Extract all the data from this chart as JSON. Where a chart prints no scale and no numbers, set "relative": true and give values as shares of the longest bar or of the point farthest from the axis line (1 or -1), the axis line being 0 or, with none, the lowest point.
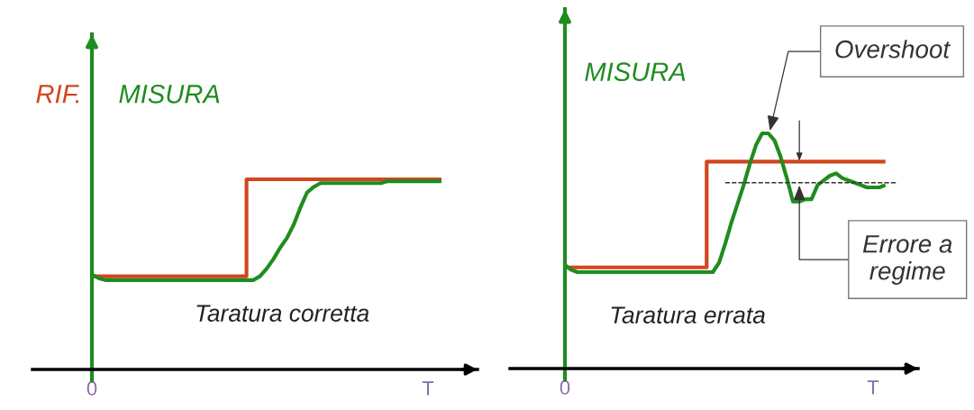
{
  "chart_data": [
    {
      "type": "line",
      "relative": true,
      "categories": [
        "0",
        null,
        null,
        null,
        null,
        null,
        null,
        null,
        null,
        null,
        null,
        null,
        null,
        null,
        null,
        null,
        null,
        null,
        null,
        null,
        null,
        null,
        null,
        null,
        null,
        null,
        null,
        null,
        null,
        null,
        null,
        null,
        null,
        null,
        null,
        null,
        null,
        null,
        null,
        null,
        null,
        null,
        null,
        null,
        null,
        null,
        null,
        null,
        null,
        null,
        "T",
        null,
        null
      ],
      "series": [
        {
          "name": "RIF.",
          "type": "step",
          "color": "#d2461e",
          "values": [
            0.49,
            0.49,
            0.49,
            0.49,
            0.49,
            0.49,
            0.49,
            0.49,
            0.49,
            0.49,
            0.49,
            0.49,
            0.49,
            0.49,
            0.49,
            0.49,
            0.49,
            0.49,
            0.49,
            0.49,
            0.49,
            0.49,
            0.49,
            1,
            1,
            1,
            1,
            1,
            1,
            1,
            1,
            1,
            1,
            1,
            1,
            1,
            1,
            1,
            1,
            1,
            1,
            1,
            1,
            1,
            1,
            1,
            1,
            1,
            1,
            1,
            1,
            1,
            1
          ]
        },
        {
          "name": "MISURA",
          "color": "#1f8c1f",
          "values": [
            0.5,
            0.48,
            0.47,
            0.47,
            0.47,
            0.47,
            0.47,
            0.47,
            0.47,
            0.47,
            0.47,
            0.47,
            0.47,
            0.47,
            0.47,
            0.47,
            0.47,
            0.47,
            0.47,
            0.47,
            0.47,
            0.47,
            0.47,
            0.47,
            0.47,
            0.49,
            0.53,
            0.58,
            0.64,
            0.69,
            0.76,
            0.85,
            0.93,
            0.96,
            0.98,
            0.98,
            0.98,
            0.98,
            0.98,
            0.98,
            0.98,
            0.98,
            0.98,
            0.98,
            0.99,
            0.99,
            0.99,
            0.99,
            0.99,
            0.99,
            0.99,
            0.99,
            0.99
          ]
        }
      ],
      "annotations": [
        "Taratura corretta"
      ]
    },
    {
      "type": "line",
      "relative": true,
      "categories": [
        "0",
        null,
        null,
        null,
        null,
        null,
        null,
        null,
        null,
        null,
        null,
        null,
        null,
        null,
        null,
        null,
        null,
        null,
        null,
        null,
        null,
        null,
        null,
        null,
        null,
        null,
        null,
        null,
        null,
        null,
        null,
        null,
        null,
        null,
        null,
        null,
        null,
        null,
        null,
        null,
        null,
        null,
        null,
        null,
        null,
        null,
        null,
        null,
        null,
        null,
        "T",
        null,
        null,
        null,
        null
      ],
      "series": [
        {
          "type": "step",
          "color": "#d2461e",
          "values": [
            0.43,
            0.43,
            0.43,
            0.43,
            0.43,
            0.43,
            0.43,
            0.43,
            0.43,
            0.43,
            0.43,
            0.43,
            0.43,
            0.43,
            0.43,
            0.43,
            0.43,
            0.43,
            0.43,
            0.43,
            0.43,
            0.43,
            0.43,
            0.88,
            0.88,
            0.88,
            0.88,
            0.88,
            0.88,
            0.88,
            0.88,
            0.88,
            0.88,
            0.88,
            0.88,
            0.88,
            0.88,
            0.88,
            0.88,
            0.88,
            0.88,
            0.88,
            0.88,
            0.88,
            0.88,
            0.88,
            0.88,
            0.88,
            0.88,
            0.88,
            0.88,
            0.88,
            0.88,
            null,
            null
          ]
        },
        {
          "name": "MISURA",
          "color": "#1f8c1f",
          "values": [
            0.44,
            0.42,
            0.41,
            0.41,
            0.41,
            0.41,
            0.41,
            0.41,
            0.41,
            0.41,
            0.41,
            0.41,
            0.41,
            0.41,
            0.41,
            0.41,
            0.41,
            0.41,
            0.41,
            0.41,
            0.41,
            0.41,
            0.41,
            0.41,
            0.41,
            0.45,
            0.53,
            0.62,
            0.7,
            0.78,
            0.87,
            0.95,
            1,
            1,
            0.97,
            0.9,
            0.81,
            0.71,
            0.71,
            0.72,
            0.72,
            0.78,
            0.8,
            0.82,
            0.83,
            0.81,
            0.8,
            0.79,
            0.78,
            0.77,
            0.77,
            0.77,
            0.78,
            null,
            null
          ]
        },
        {
          "color": "#333333",
          "line_style": "dashed",
          "values": [
            null,
            null,
            null,
            null,
            null,
            null,
            null,
            null,
            null,
            null,
            null,
            null,
            null,
            null,
            null,
            null,
            null,
            null,
            null,
            null,
            null,
            null,
            null,
            null,
            null,
            null,
            0.79,
            0.79,
            0.79,
            0.79,
            0.79,
            0.79,
            0.79,
            0.79,
            0.79,
            0.79,
            0.79,
            0.79,
            0.79,
            0.79,
            0.79,
            0.79,
            0.79,
            0.79,
            0.79,
            0.79,
            0.79,
            0.79,
            0.79,
            0.79,
            0.79,
            0.79,
            0.79,
            0.79,
            0.79
          ]
        }
      ],
      "annotations": [
        "Taratura errata",
        "Overshoot",
        "Errore a\nregime"
      ]
    }
  ]
}
